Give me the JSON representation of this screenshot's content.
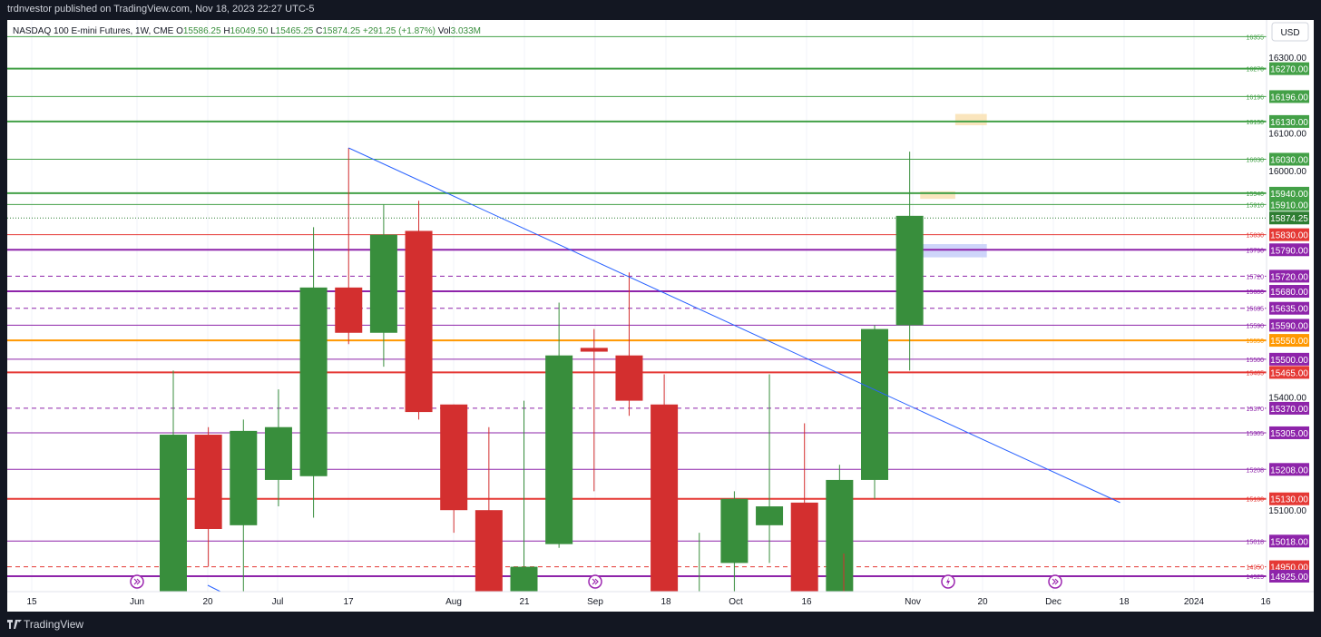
{
  "header": {
    "published": "trdnvestor published on TradingView.com, Nov 18, 2023 22:27 UTC-5"
  },
  "footer": {
    "brand": "TradingView",
    "logo_icon": "tradingview-logo-icon"
  },
  "legend": {
    "symbol": "NASDAQ 100 E-mini Futures, 1W, CME",
    "o_prefix": "O",
    "o": "15586.25",
    "h_prefix": "H",
    "h": "16049.50",
    "l_prefix": "L",
    "l": "15465.25",
    "c_prefix": "C",
    "c": "15874.25",
    "change": "+291.25 (+1.87%)",
    "vol_prefix": "Vol",
    "vol": "3.033M"
  },
  "colors": {
    "up": "#388e3c",
    "down": "#d32f2f",
    "trend": "#2962ff",
    "green_level": "#43a047",
    "red_level": "#e53935",
    "purple_level": "#8e24aa",
    "orange_level": "#ff9800",
    "price_dotted": "#2e7d32"
  },
  "chart_data": {
    "type": "candlestick",
    "currency": "USD",
    "y_range": [
      14860,
      16375
    ],
    "x_ticks": [
      "15",
      "Jun",
      "20",
      "Jul",
      "17",
      "Aug",
      "21",
      "Sep",
      "18",
      "Oct",
      "16",
      "Nov",
      "20",
      "Dec",
      "18",
      "2024",
      "16"
    ],
    "y_ticks": [
      "16300.00",
      "16100.00",
      "16000.00",
      "15400.00",
      "15100.00"
    ],
    "candles": [
      {
        "o": 14860,
        "h": 15470,
        "l": 14860,
        "c": 15300
      },
      {
        "o": 15300,
        "h": 15320,
        "l": 14950,
        "c": 15050
      },
      {
        "o": 15060,
        "h": 15340,
        "l": 14860,
        "c": 15310
      },
      {
        "o": 15180,
        "h": 15420,
        "l": 15110,
        "c": 15320
      },
      {
        "o": 15190,
        "h": 15850,
        "l": 15080,
        "c": 15690
      },
      {
        "o": 15690,
        "h": 16060,
        "l": 15540,
        "c": 15570
      },
      {
        "o": 15570,
        "h": 15910,
        "l": 15480,
        "c": 15830
      },
      {
        "o": 15840,
        "h": 15920,
        "l": 15340,
        "c": 15360
      },
      {
        "o": 15380,
        "h": 15380,
        "l": 15040,
        "c": 15100
      },
      {
        "o": 15100,
        "h": 15320,
        "l": 14860,
        "c": 14860
      },
      {
        "o": 14860,
        "h": 15390,
        "l": 14860,
        "c": 14950
      },
      {
        "o": 15010,
        "h": 15650,
        "l": 15000,
        "c": 15510
      },
      {
        "o": 15530,
        "h": 15580,
        "l": 15150,
        "c": 15520
      },
      {
        "o": 15510,
        "h": 15730,
        "l": 15350,
        "c": 15390
      },
      {
        "o": 15380,
        "h": 15460,
        "l": 14870,
        "c": 14870
      },
      {
        "o": 14870,
        "h": 15040,
        "l": 14860,
        "c": 14880
      },
      {
        "o": 14960,
        "h": 15150,
        "l": 14860,
        "c": 15130
      },
      {
        "o": 15060,
        "h": 15460,
        "l": 14960,
        "c": 15110
      },
      {
        "o": 15120,
        "h": 15330,
        "l": 14860,
        "c": 14860
      },
      {
        "o": 14860,
        "h": 15220,
        "l": 14860,
        "c": 15180
      },
      {
        "o": 15180,
        "h": 15590,
        "l": 15130,
        "c": 15580
      },
      {
        "o": 15590,
        "h": 16050,
        "l": 15470,
        "c": 15880
      }
    ],
    "levels": [
      {
        "value": "16355",
        "color": "green",
        "style": "solid",
        "width": 1
      },
      {
        "value": "16270",
        "tag": "16270.00",
        "color": "green",
        "style": "solid",
        "width": 2
      },
      {
        "value": "16196",
        "tag": "16196.00",
        "color": "green",
        "style": "solid",
        "width": 1
      },
      {
        "value": "16130",
        "tag": "16130.00",
        "color": "green",
        "style": "solid",
        "width": 2
      },
      {
        "value": "16030",
        "tag": "16030.00",
        "color": "green",
        "style": "solid",
        "width": 1
      },
      {
        "value": "15940",
        "tag": "15940.00",
        "color": "green",
        "style": "solid",
        "width": 2
      },
      {
        "value": "15910",
        "tag": "15910.00",
        "color": "green",
        "style": "solid",
        "width": 1
      },
      {
        "value": "15830",
        "tag": "15830.00",
        "color": "red",
        "style": "solid",
        "width": 1
      },
      {
        "value": "15790",
        "tag": "15790.00",
        "color": "purple",
        "style": "solid",
        "width": 2
      },
      {
        "value": "15720",
        "tag": "15720.00",
        "color": "purple",
        "style": "dashed",
        "width": 1
      },
      {
        "value": "15680",
        "tag": "15680.00",
        "color": "purple",
        "style": "solid",
        "width": 2
      },
      {
        "value": "15635",
        "tag": "15635.00",
        "color": "purple",
        "style": "dashed",
        "width": 1
      },
      {
        "value": "15590",
        "tag": "15590.00",
        "color": "purple",
        "style": "solid",
        "width": 1
      },
      {
        "value": "15550",
        "tag": "15550.00",
        "color": "orange",
        "style": "solid",
        "width": 2
      },
      {
        "value": "15500",
        "tag": "15500.00",
        "color": "purple",
        "style": "solid",
        "width": 1
      },
      {
        "value": "15465",
        "tag": "15465.00",
        "color": "red",
        "style": "solid",
        "width": 2
      },
      {
        "value": "15370",
        "tag": "15370.00",
        "color": "purple",
        "style": "dashed",
        "width": 1
      },
      {
        "value": "15305",
        "tag": "15305.00",
        "color": "purple",
        "style": "solid",
        "width": 1
      },
      {
        "value": "15208",
        "tag": "15208.00",
        "color": "purple",
        "style": "solid",
        "width": 1
      },
      {
        "value": "15130",
        "tag": "15130.00",
        "color": "red",
        "style": "solid",
        "width": 2
      },
      {
        "value": "15018",
        "tag": "15018.00",
        "color": "purple",
        "style": "solid",
        "width": 1
      },
      {
        "value": "14950",
        "tag": "14950.00",
        "color": "red",
        "style": "dashed",
        "width": 1
      },
      {
        "value": "14925",
        "tag": "14925.00",
        "color": "purple",
        "style": "solid",
        "width": 2
      }
    ],
    "current_price": {
      "value": 15874.25,
      "tag": "15874.25"
    },
    "trendline": {
      "from": {
        "candle": 5,
        "value": 16060
      },
      "to": {
        "candle": 27,
        "value": 15120
      }
    },
    "zones": [
      {
        "candle_from": 22.3,
        "candle_to": 23.2,
        "high": 16150,
        "low": 16120,
        "color": "#f9e0b2"
      },
      {
        "candle_from": 21.3,
        "candle_to": 22.3,
        "high": 15945,
        "low": 15925,
        "color": "#f9e0b2"
      },
      {
        "candle_from": 21.3,
        "candle_to": 23.2,
        "high": 15805,
        "low": 15770,
        "color": "#c5cef9"
      }
    ],
    "event_markers": [
      {
        "candle": 0,
        "type": "dividend-arrow-icon"
      },
      {
        "candle": 12,
        "type": "dividend-arrow-icon"
      },
      {
        "candle": 21,
        "type": "earnings-flash-icon"
      },
      {
        "candle": 24,
        "type": "dividend-arrow-icon"
      }
    ]
  }
}
